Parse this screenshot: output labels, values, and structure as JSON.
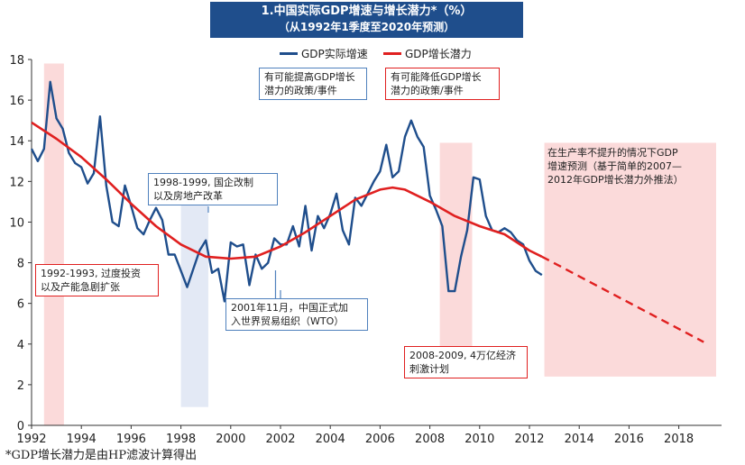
{
  "chart_data": {
    "type": "line",
    "title": "1.中国实际GDP增速与增长潜力*（%）",
    "subtitle": "（从1992年1季度至2020年预测）",
    "xlim": [
      1992,
      2019.5
    ],
    "ylim": [
      0,
      18
    ],
    "x_ticks": [
      "1992",
      "1994",
      "1996",
      "1998",
      "2000",
      "2002",
      "2004",
      "2006",
      "2008",
      "2010",
      "2012",
      "2014",
      "2016",
      "2018"
    ],
    "y_ticks": [
      "0",
      "2",
      "4",
      "6",
      "8",
      "10",
      "12",
      "14",
      "16",
      "18"
    ],
    "legend_position": "top-center",
    "series": [
      {
        "name": "GDP实际增速",
        "color": "#1f4e8c",
        "x": [
          1992.0,
          1992.25,
          1992.5,
          1992.75,
          1993.0,
          1993.25,
          1993.5,
          1993.75,
          1994.0,
          1994.25,
          1994.5,
          1994.75,
          1995.0,
          1995.25,
          1995.5,
          1995.75,
          1996.0,
          1996.25,
          1996.5,
          1996.75,
          1997.0,
          1997.25,
          1997.5,
          1997.75,
          1998.0,
          1998.25,
          1998.5,
          1998.75,
          1999.0,
          1999.25,
          1999.5,
          1999.75,
          2000.0,
          2000.25,
          2000.5,
          2000.75,
          2001.0,
          2001.25,
          2001.5,
          2001.75,
          2002.0,
          2002.25,
          2002.5,
          2002.75,
          2003.0,
          2003.25,
          2003.5,
          2003.75,
          2004.0,
          2004.25,
          2004.5,
          2004.75,
          2005.0,
          2005.25,
          2005.5,
          2005.75,
          2006.0,
          2006.25,
          2006.5,
          2006.75,
          2007.0,
          2007.25,
          2007.5,
          2007.75,
          2008.0,
          2008.25,
          2008.5,
          2008.75,
          2009.0,
          2009.25,
          2009.5,
          2009.75,
          2010.0,
          2010.25,
          2010.5,
          2010.75,
          2011.0,
          2011.25,
          2011.5,
          2011.75,
          2012.0,
          2012.25,
          2012.5
        ],
        "y": [
          13.6,
          13.0,
          13.6,
          16.9,
          15.1,
          14.6,
          13.4,
          12.9,
          12.7,
          11.9,
          12.4,
          15.2,
          11.8,
          10.0,
          9.8,
          11.8,
          10.8,
          9.7,
          9.4,
          10.1,
          10.7,
          10.1,
          8.4,
          8.4,
          7.6,
          6.8,
          7.7,
          8.6,
          9.1,
          7.5,
          7.7,
          6.1,
          9.0,
          8.8,
          8.9,
          6.9,
          8.4,
          7.7,
          8.0,
          9.2,
          8.9,
          8.9,
          9.8,
          8.8,
          10.8,
          8.6,
          10.3,
          9.7,
          10.4,
          11.4,
          9.6,
          8.9,
          11.2,
          10.8,
          11.4,
          12.0,
          12.5,
          13.8,
          12.2,
          12.5,
          14.2,
          15.0,
          14.2,
          13.7,
          11.3,
          10.6,
          9.8,
          6.6,
          6.6,
          8.3,
          9.6,
          12.2,
          12.1,
          10.3,
          9.6,
          9.5,
          9.7,
          9.5,
          9.1,
          8.9,
          8.1,
          7.6,
          7.4
        ]
      },
      {
        "name": "GDP增长潜力",
        "color": "#e02020",
        "x": [
          1992.0,
          1993.0,
          1994.0,
          1995.0,
          1996.0,
          1997.0,
          1998.0,
          1999.0,
          2000.0,
          2001.0,
          2002.0,
          2003.0,
          2004.0,
          2005.0,
          2006.0,
          2006.5,
          2007.0,
          2008.0,
          2009.0,
          2010.0,
          2011.0,
          2012.0,
          2012.5
        ],
        "y": [
          14.9,
          14.1,
          13.2,
          12.1,
          10.9,
          9.8,
          8.9,
          8.3,
          8.2,
          8.3,
          8.8,
          9.5,
          10.3,
          11.1,
          11.6,
          11.7,
          11.6,
          11.0,
          10.3,
          9.8,
          9.4,
          8.6,
          8.3
        ]
      }
    ],
    "projection": {
      "color": "#e02020",
      "style": "dashed",
      "x": [
        2012.5,
        2019.0
      ],
      "y": [
        8.3,
        4.1
      ]
    },
    "shaded_regions": [
      {
        "x0": 1992.5,
        "x1": 1993.3,
        "y0": 0,
        "y1": 17.8,
        "color": "#fbdada"
      },
      {
        "x0": 1998.0,
        "x1": 1999.1,
        "y0": 0.9,
        "y1": 11.4,
        "color": "#e3e9f5"
      },
      {
        "x0": 2008.4,
        "x1": 2009.7,
        "y0": 2.5,
        "y1": 13.9,
        "color": "#fbdada"
      },
      {
        "x0": 2012.6,
        "x1": 2019.5,
        "y0": 2.4,
        "y1": 13.9,
        "color": "#fbdada"
      }
    ]
  },
  "annotations": {
    "policy_up": [
      "有可能提高GDP增长",
      "潜力的政策/事件"
    ],
    "policy_down": [
      "有可能降低GDP增长",
      "潜力的政策/事件"
    ],
    "soe_reform": [
      "1998-1999, 国企改制",
      "以及房地产改革"
    ],
    "overinvest": [
      "1992-1993, 过度投资",
      "以及产能急剧扩张"
    ],
    "wto": [
      "2001年11月，中国正式加",
      "入世界贸易组织（WTO）"
    ],
    "stimulus": [
      "2008-2009, 4万亿经济",
      "刺激计划"
    ],
    "forecast": [
      "在生产率不提升的情况下GDP",
      "增速预测（基于简单的2007—",
      "2012年GDP增长潜力外推法）"
    ]
  },
  "footnote": "*GDP增长潜力是由HP滤波计算得出"
}
